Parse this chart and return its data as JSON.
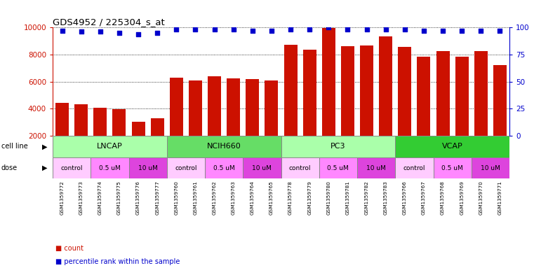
{
  "title": "GDS4952 / 225304_s_at",
  "samples": [
    "GSM1359772",
    "GSM1359773",
    "GSM1359774",
    "GSM1359775",
    "GSM1359776",
    "GSM1359777",
    "GSM1359760",
    "GSM1359761",
    "GSM1359762",
    "GSM1359763",
    "GSM1359764",
    "GSM1359765",
    "GSM1359778",
    "GSM1359779",
    "GSM1359780",
    "GSM1359781",
    "GSM1359782",
    "GSM1359783",
    "GSM1359766",
    "GSM1359767",
    "GSM1359768",
    "GSM1359769",
    "GSM1359770",
    "GSM1359771"
  ],
  "bar_values": [
    4450,
    4350,
    4050,
    3980,
    3020,
    3280,
    6300,
    6100,
    6400,
    6250,
    6200,
    6100,
    8700,
    8380,
    9950,
    8600,
    8650,
    9350,
    8550,
    7820,
    8270,
    7870,
    8250,
    7250
  ],
  "percentile_values": [
    97,
    96,
    96,
    95,
    94,
    95,
    98,
    98,
    98,
    98,
    97,
    97,
    98,
    98,
    100,
    98,
    98,
    98,
    98,
    97,
    97,
    97,
    97,
    97
  ],
  "bar_color": "#CC1100",
  "dot_color": "#0000CC",
  "ylim_left": [
    2000,
    10000
  ],
  "ylim_right": [
    0,
    100
  ],
  "yticks_left": [
    2000,
    4000,
    6000,
    8000,
    10000
  ],
  "yticks_right": [
    0,
    25,
    50,
    75,
    100
  ],
  "cell_line_groups": [
    {
      "name": "LNCAP",
      "start": 0,
      "end": 6,
      "color": "#AAFFAA"
    },
    {
      "name": "NCIH660",
      "start": 6,
      "end": 12,
      "color": "#66DD66"
    },
    {
      "name": "PC3",
      "start": 12,
      "end": 18,
      "color": "#AAFFAA"
    },
    {
      "name": "VCAP",
      "start": 18,
      "end": 24,
      "color": "#33CC33"
    }
  ],
  "dose_pattern": [
    {
      "name": "control",
      "start": 0,
      "end": 2,
      "color": "#FFCCFF"
    },
    {
      "name": "0.5 uM",
      "start": 2,
      "end": 4,
      "color": "#FF88FF"
    },
    {
      "name": "10 uM",
      "start": 4,
      "end": 6,
      "color": "#DD44DD"
    },
    {
      "name": "control",
      "start": 6,
      "end": 8,
      "color": "#FFCCFF"
    },
    {
      "name": "0.5 uM",
      "start": 8,
      "end": 10,
      "color": "#FF88FF"
    },
    {
      "name": "10 uM",
      "start": 10,
      "end": 12,
      "color": "#DD44DD"
    },
    {
      "name": "control",
      "start": 12,
      "end": 14,
      "color": "#FFCCFF"
    },
    {
      "name": "0.5 uM",
      "start": 14,
      "end": 16,
      "color": "#FF88FF"
    },
    {
      "name": "10 uM",
      "start": 16,
      "end": 18,
      "color": "#DD44DD"
    },
    {
      "name": "control",
      "start": 18,
      "end": 20,
      "color": "#FFCCFF"
    },
    {
      "name": "0.5 uM",
      "start": 20,
      "end": 22,
      "color": "#FF88FF"
    },
    {
      "name": "10 uM",
      "start": 22,
      "end": 24,
      "color": "#DD44DD"
    }
  ],
  "bg_color": "#FFFFFF",
  "left_tick_color": "#CC1100",
  "right_tick_color": "#0000CC",
  "sample_bg_color": "#CCCCCC",
  "legend_count_color": "#CC1100",
  "legend_pct_color": "#0000CC"
}
